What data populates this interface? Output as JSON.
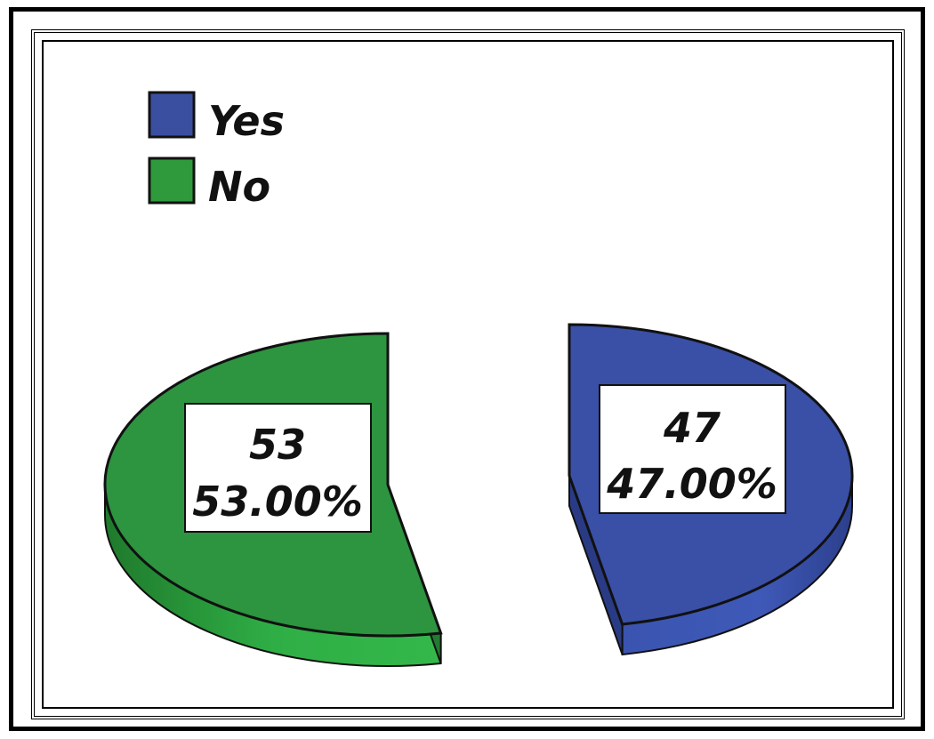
{
  "chart_data": {
    "type": "pie",
    "style": "3d-exploded",
    "legend_position": "top-left",
    "categories": [
      "Yes",
      "No"
    ],
    "values": [
      47,
      53
    ],
    "percent_labels": [
      "47.00%",
      "53.00%"
    ],
    "count_labels": [
      "47",
      "53"
    ],
    "colors": {
      "Yes": "#3b4fa1",
      "No": "#2e9a3c"
    },
    "legend": [
      {
        "label": "Yes",
        "color": "#3b4fa1"
      },
      {
        "label": "No",
        "color": "#2e9a3c"
      }
    ]
  }
}
